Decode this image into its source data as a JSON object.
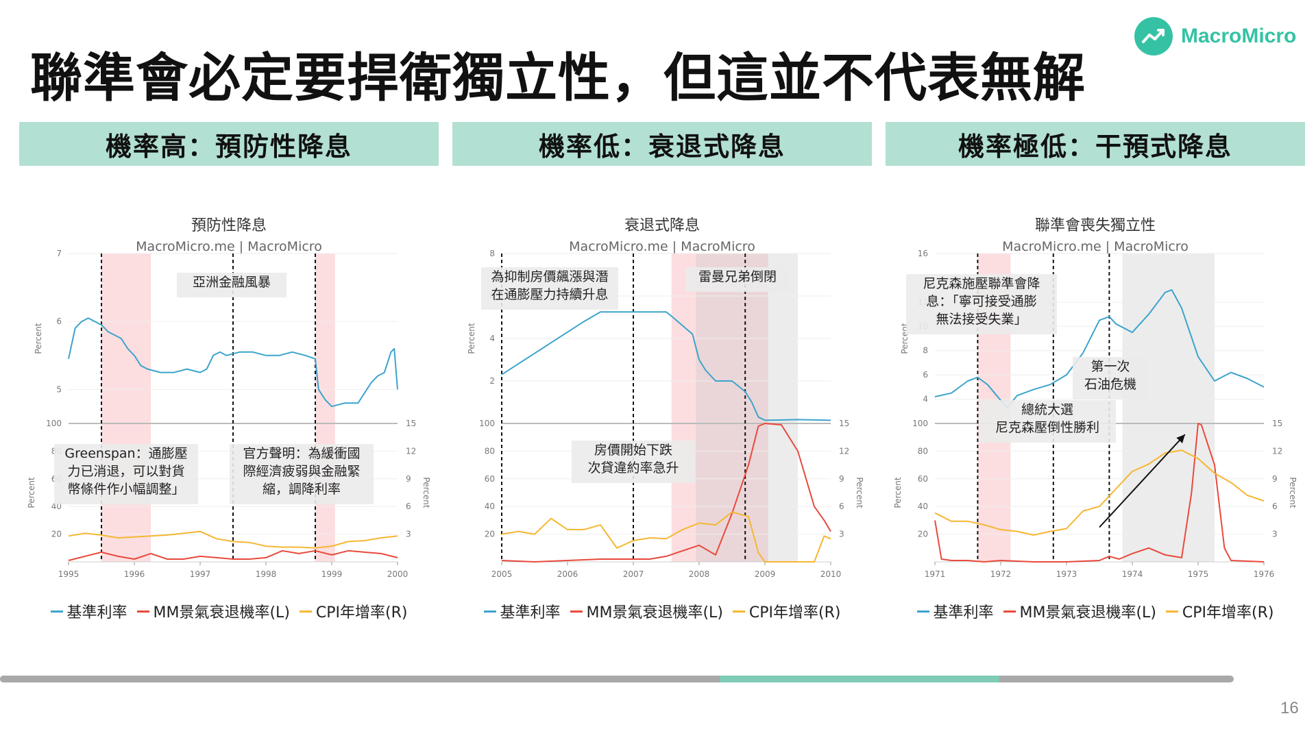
{
  "slide": {
    "title": "聯準會必定要捍衛獨立性，但這並不代表無解",
    "brand": "MacroMicro",
    "page_number": "16",
    "progress": 0.81
  },
  "legend_labels": [
    "基準利率",
    "MM景氣衰退機率(L)",
    "CPI年增率(R)"
  ],
  "colors": {
    "rate": "#3ba3cc",
    "recession": "#e8493b",
    "cpi": "#f5b731",
    "banner": "#b2e0d3",
    "brand": "#35c2a4"
  },
  "chart_data": [
    {
      "type": "line",
      "banner": "機率高：預防性降息",
      "title": "預防性降息",
      "subtitle": "MacroMicro.me | MacroMicro",
      "x_range": [
        1995,
        2000
      ],
      "x_ticks": [
        "1995",
        "1996",
        "1997",
        "1998",
        "1999",
        "2000"
      ],
      "top": {
        "ylabel": "Percent",
        "ylim": [
          4.5,
          7
        ],
        "yticks": [
          5,
          6,
          7
        ]
      },
      "bottom": {
        "ylabel_left": "Percent",
        "ylabel_right": "Percent",
        "ylim_left": [
          0,
          100
        ],
        "yticks_left": [
          20,
          40,
          60,
          80,
          100
        ],
        "ylim_right": [
          0,
          15
        ],
        "yticks_right": [
          3,
          6,
          9,
          12,
          15
        ]
      },
      "shaded_regions": [
        {
          "from": 1995.5,
          "to": 1996.25,
          "color": "pink"
        },
        {
          "from": 1998.75,
          "to": 1999.05,
          "color": "pink"
        }
      ],
      "vlines": [
        1995.5,
        1997.5,
        1998.75
      ],
      "annotations": [
        {
          "text": [
            "亞洲金融風暴"
          ],
          "panel": "top"
        },
        {
          "text": [
            "Greenspan：通膨壓",
            "力已消退，可以對貨",
            "幣條件作小幅調整」"
          ],
          "panel": "bottom"
        },
        {
          "text": [
            "官方聲明：為緩衝國",
            "際經濟疲弱與金融緊",
            "縮，調降利率"
          ],
          "panel": "bottom"
        }
      ],
      "series": [
        {
          "name": "基準利率",
          "axis": "top",
          "x": [
            1995.0,
            1995.1,
            1995.2,
            1995.3,
            1995.4,
            1995.5,
            1995.6,
            1995.7,
            1995.8,
            1995.9,
            1996.0,
            1996.1,
            1996.2,
            1996.4,
            1996.6,
            1996.8,
            1997.0,
            1997.1,
            1997.2,
            1997.3,
            1997.4,
            1997.6,
            1997.8,
            1998.0,
            1998.2,
            1998.4,
            1998.6,
            1998.75,
            1998.8,
            1998.9,
            1999.0,
            1999.2,
            1999.4,
            1999.6,
            1999.7,
            1999.8,
            1999.9,
            1999.95,
            2000.0
          ],
          "values": [
            5.45,
            5.9,
            6.0,
            6.05,
            6.0,
            5.95,
            5.85,
            5.8,
            5.75,
            5.6,
            5.5,
            5.35,
            5.3,
            5.25,
            5.25,
            5.3,
            5.25,
            5.3,
            5.5,
            5.55,
            5.5,
            5.55,
            5.55,
            5.5,
            5.5,
            5.55,
            5.5,
            5.45,
            5.0,
            4.85,
            4.75,
            4.8,
            4.8,
            5.1,
            5.2,
            5.25,
            5.55,
            5.6,
            5.0
          ]
        },
        {
          "name": "MM景氣衰退機率(L)",
          "axis": "left",
          "x": [
            1995.0,
            1995.25,
            1995.5,
            1995.75,
            1996.0,
            1996.25,
            1996.5,
            1996.75,
            1997.0,
            1997.25,
            1997.5,
            1997.75,
            1998.0,
            1998.25,
            1998.5,
            1998.75,
            1999.0,
            1999.25,
            1999.5,
            1999.75,
            2000.0
          ],
          "values": [
            1,
            4,
            7,
            4,
            2,
            6,
            2,
            2,
            4,
            3,
            2,
            2,
            3,
            8,
            6,
            8,
            5,
            8,
            7,
            6,
            3
          ]
        },
        {
          "name": "CPI年增率(R)",
          "axis": "right",
          "x": [
            1995.0,
            1995.25,
            1995.5,
            1995.75,
            1996.0,
            1996.25,
            1996.5,
            1996.75,
            1997.0,
            1997.25,
            1997.5,
            1997.75,
            1998.0,
            1998.25,
            1998.5,
            1998.75,
            1999.0,
            1999.25,
            1999.5,
            1999.75,
            2000.0
          ],
          "values": [
            2.8,
            3.1,
            2.9,
            2.6,
            2.7,
            2.8,
            2.9,
            3.1,
            3.3,
            2.5,
            2.2,
            2.1,
            1.7,
            1.6,
            1.6,
            1.5,
            1.7,
            2.2,
            2.3,
            2.6,
            2.8
          ]
        }
      ]
    },
    {
      "type": "line",
      "banner": "機率低：衰退式降息",
      "title": "衰退式降息",
      "subtitle": "MacroMicro.me | MacroMicro",
      "x_range": [
        2005,
        2010
      ],
      "x_ticks": [
        "2005",
        "2006",
        "2007",
        "2008",
        "2009",
        "2010"
      ],
      "top": {
        "ylabel": "Percent",
        "ylim": [
          0,
          8
        ],
        "yticks": [
          2,
          4,
          6,
          8
        ]
      },
      "bottom": {
        "ylabel_left": "",
        "ylabel_right": "Percent",
        "ylim_left": [
          0,
          100
        ],
        "yticks_left": [
          20,
          40,
          60,
          80,
          100
        ],
        "ylim_right": [
          0,
          15
        ],
        "yticks_right": [
          3,
          6,
          9,
          12,
          15
        ]
      },
      "shaded_regions": [
        {
          "from": 2007.58,
          "to": 2009.05,
          "color": "pink"
        },
        {
          "from": 2007.95,
          "to": 2009.5,
          "color": "gray"
        }
      ],
      "vlines": [
        2005.0,
        2007.0,
        2008.7
      ],
      "annotations": [
        {
          "text": [
            "為抑制房價飆漲與潛",
            "在通膨壓力持續升息"
          ],
          "panel": "top"
        },
        {
          "text": [
            "雷曼兄弟倒閉"
          ],
          "panel": "top"
        },
        {
          "text": [
            "房價開始下跌",
            "次貸違約率急升"
          ],
          "panel": "bottom"
        }
      ],
      "series": [
        {
          "name": "基準利率",
          "axis": "top",
          "x": [
            2005.0,
            2005.25,
            2005.5,
            2005.75,
            2006.0,
            2006.25,
            2006.5,
            2007.0,
            2007.5,
            2007.6,
            2007.75,
            2007.9,
            2008.0,
            2008.1,
            2008.25,
            2008.5,
            2008.7,
            2008.8,
            2008.9,
            2009.0,
            2009.5,
            2010.0
          ],
          "values": [
            2.3,
            2.8,
            3.3,
            3.8,
            4.3,
            4.8,
            5.25,
            5.25,
            5.25,
            5.0,
            4.6,
            4.2,
            3.0,
            2.5,
            2.0,
            2.0,
            1.5,
            1.0,
            0.3,
            0.15,
            0.18,
            0.15
          ]
        },
        {
          "name": "MM景氣衰退機率(L)",
          "axis": "left",
          "x": [
            2005.0,
            2005.5,
            2006.0,
            2006.5,
            2007.0,
            2007.25,
            2007.5,
            2007.75,
            2008.0,
            2008.25,
            2008.5,
            2008.75,
            2008.9,
            2009.0,
            2009.25,
            2009.5,
            2009.75,
            2009.9,
            2010.0
          ],
          "values": [
            1,
            0,
            1,
            2,
            2,
            2,
            4,
            8,
            12,
            5,
            35,
            70,
            98,
            100,
            99,
            80,
            40,
            30,
            22
          ]
        },
        {
          "name": "CPI年增率(R)",
          "axis": "right",
          "x": [
            2005.0,
            2005.25,
            2005.5,
            2005.75,
            2006.0,
            2006.25,
            2006.5,
            2006.75,
            2007.0,
            2007.25,
            2007.5,
            2007.75,
            2008.0,
            2008.25,
            2008.5,
            2008.75,
            2008.9,
            2009.0,
            2009.25,
            2009.5,
            2009.75,
            2009.9,
            2010.0
          ],
          "values": [
            3.0,
            3.3,
            3.0,
            4.7,
            3.5,
            3.5,
            4.0,
            1.5,
            2.3,
            2.6,
            2.5,
            3.5,
            4.2,
            4.0,
            5.4,
            4.9,
            1.0,
            0.0,
            -1.0,
            -1.5,
            -0.5,
            2.8,
            2.5
          ]
        }
      ]
    },
    {
      "type": "line",
      "banner": "機率極低：干預式降息",
      "title": "聯準會喪失獨立性",
      "subtitle": "MacroMicro.me | MacroMicro",
      "x_range": [
        1971,
        1976
      ],
      "x_ticks": [
        "1971",
        "1972",
        "1973",
        "1974",
        "1975",
        "1976"
      ],
      "top": {
        "ylabel": "Percent",
        "ylim": [
          2,
          16
        ],
        "yticks": [
          4,
          6,
          8,
          10,
          12,
          16
        ]
      },
      "bottom": {
        "ylabel_left": "Percent",
        "ylabel_right": "Percent",
        "ylim_left": [
          0,
          100
        ],
        "yticks_left": [
          20,
          40,
          60,
          80,
          100
        ],
        "ylim_right": [
          0,
          15
        ],
        "yticks_right": [
          3,
          6,
          9,
          12,
          15
        ]
      },
      "shaded_regions": [
        {
          "from": 1971.65,
          "to": 1972.15,
          "color": "pink"
        },
        {
          "from": 1973.85,
          "to": 1975.25,
          "color": "gray"
        }
      ],
      "vlines": [
        1971.65,
        1972.8,
        1973.65
      ],
      "annotations": [
        {
          "text": [
            "尼克森施壓聯準會降",
            "息：「寧可接受通膨",
            "無法接受失業」"
          ],
          "panel": "top"
        },
        {
          "text": [
            "第一次",
            "石油危機"
          ],
          "panel": "top"
        },
        {
          "text": [
            "總統大選",
            "尼克森壓倒性勝利"
          ],
          "panel": "bottom"
        }
      ],
      "series": [
        {
          "name": "基準利率",
          "axis": "top",
          "x": [
            1971.0,
            1971.25,
            1971.5,
            1971.65,
            1971.8,
            1972.0,
            1972.1,
            1972.25,
            1972.5,
            1972.75,
            1973.0,
            1973.25,
            1973.5,
            1973.65,
            1973.75,
            1974.0,
            1974.25,
            1974.5,
            1974.6,
            1974.75,
            1975.0,
            1975.25,
            1975.5,
            1975.75,
            1976.0
          ],
          "values": [
            4.2,
            4.5,
            5.5,
            5.8,
            5.2,
            3.9,
            3.3,
            4.3,
            4.8,
            5.2,
            6.0,
            7.8,
            10.5,
            10.8,
            10.2,
            9.5,
            11.0,
            12.8,
            13.0,
            11.5,
            7.5,
            5.5,
            6.2,
            5.7,
            5.0
          ]
        },
        {
          "name": "MM景氣衰退機率(L)",
          "axis": "left",
          "x": [
            1971.0,
            1971.1,
            1971.25,
            1971.5,
            1971.75,
            1972.0,
            1972.5,
            1973.0,
            1973.5,
            1973.65,
            1973.8,
            1974.0,
            1974.25,
            1974.5,
            1974.75,
            1974.9,
            1975.0,
            1975.05,
            1975.25,
            1975.4,
            1975.5,
            1976.0
          ],
          "values": [
            30,
            2,
            1,
            1,
            0,
            1,
            0,
            0,
            1,
            4,
            2,
            6,
            10,
            5,
            3,
            50,
            100,
            99,
            70,
            10,
            1,
            0
          ]
        },
        {
          "name": "CPI年增率(R)",
          "axis": "right",
          "x": [
            1971.0,
            1971.25,
            1971.5,
            1971.75,
            1972.0,
            1972.25,
            1972.5,
            1972.75,
            1973.0,
            1973.25,
            1973.5,
            1973.75,
            1974.0,
            1974.25,
            1974.5,
            1974.75,
            1975.0,
            1975.25,
            1975.5,
            1975.75,
            1976.0
          ],
          "values": [
            5.3,
            4.4,
            4.4,
            4.0,
            3.5,
            3.3,
            2.9,
            3.3,
            3.6,
            5.5,
            6.0,
            7.9,
            9.8,
            10.6,
            11.8,
            12.1,
            11.2,
            9.6,
            8.6,
            7.2,
            6.6
          ]
        }
      ]
    }
  ]
}
